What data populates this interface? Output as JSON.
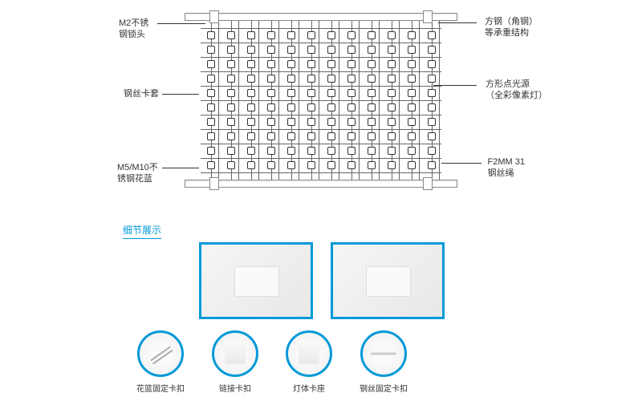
{
  "diagram": {
    "grid_cols": 12,
    "grid_rows": 10,
    "labels": {
      "top_left": "M2不锈\n钢锁头",
      "top_right": "方钢（角钢）\n等承重结构",
      "mid_left": "钢丝卡套",
      "mid_right": "方形点光源\n（全彩像素灯）",
      "bot_left": "M5/M10不\n锈钢花蓝",
      "bot_right": "F2MM 31\n钢丝绳"
    },
    "bar_color": "#888888",
    "grid_color": "#666666",
    "node_color": "#333333"
  },
  "section_title": "细节展示",
  "photo_border_color": "#0099d8",
  "icons": [
    {
      "label": "花篮固定卡扣"
    },
    {
      "label": "链接卡扣"
    },
    {
      "label": "灯体卡座"
    },
    {
      "label": "钢丝固定卡扣"
    }
  ],
  "accent_color": "#0099d8"
}
